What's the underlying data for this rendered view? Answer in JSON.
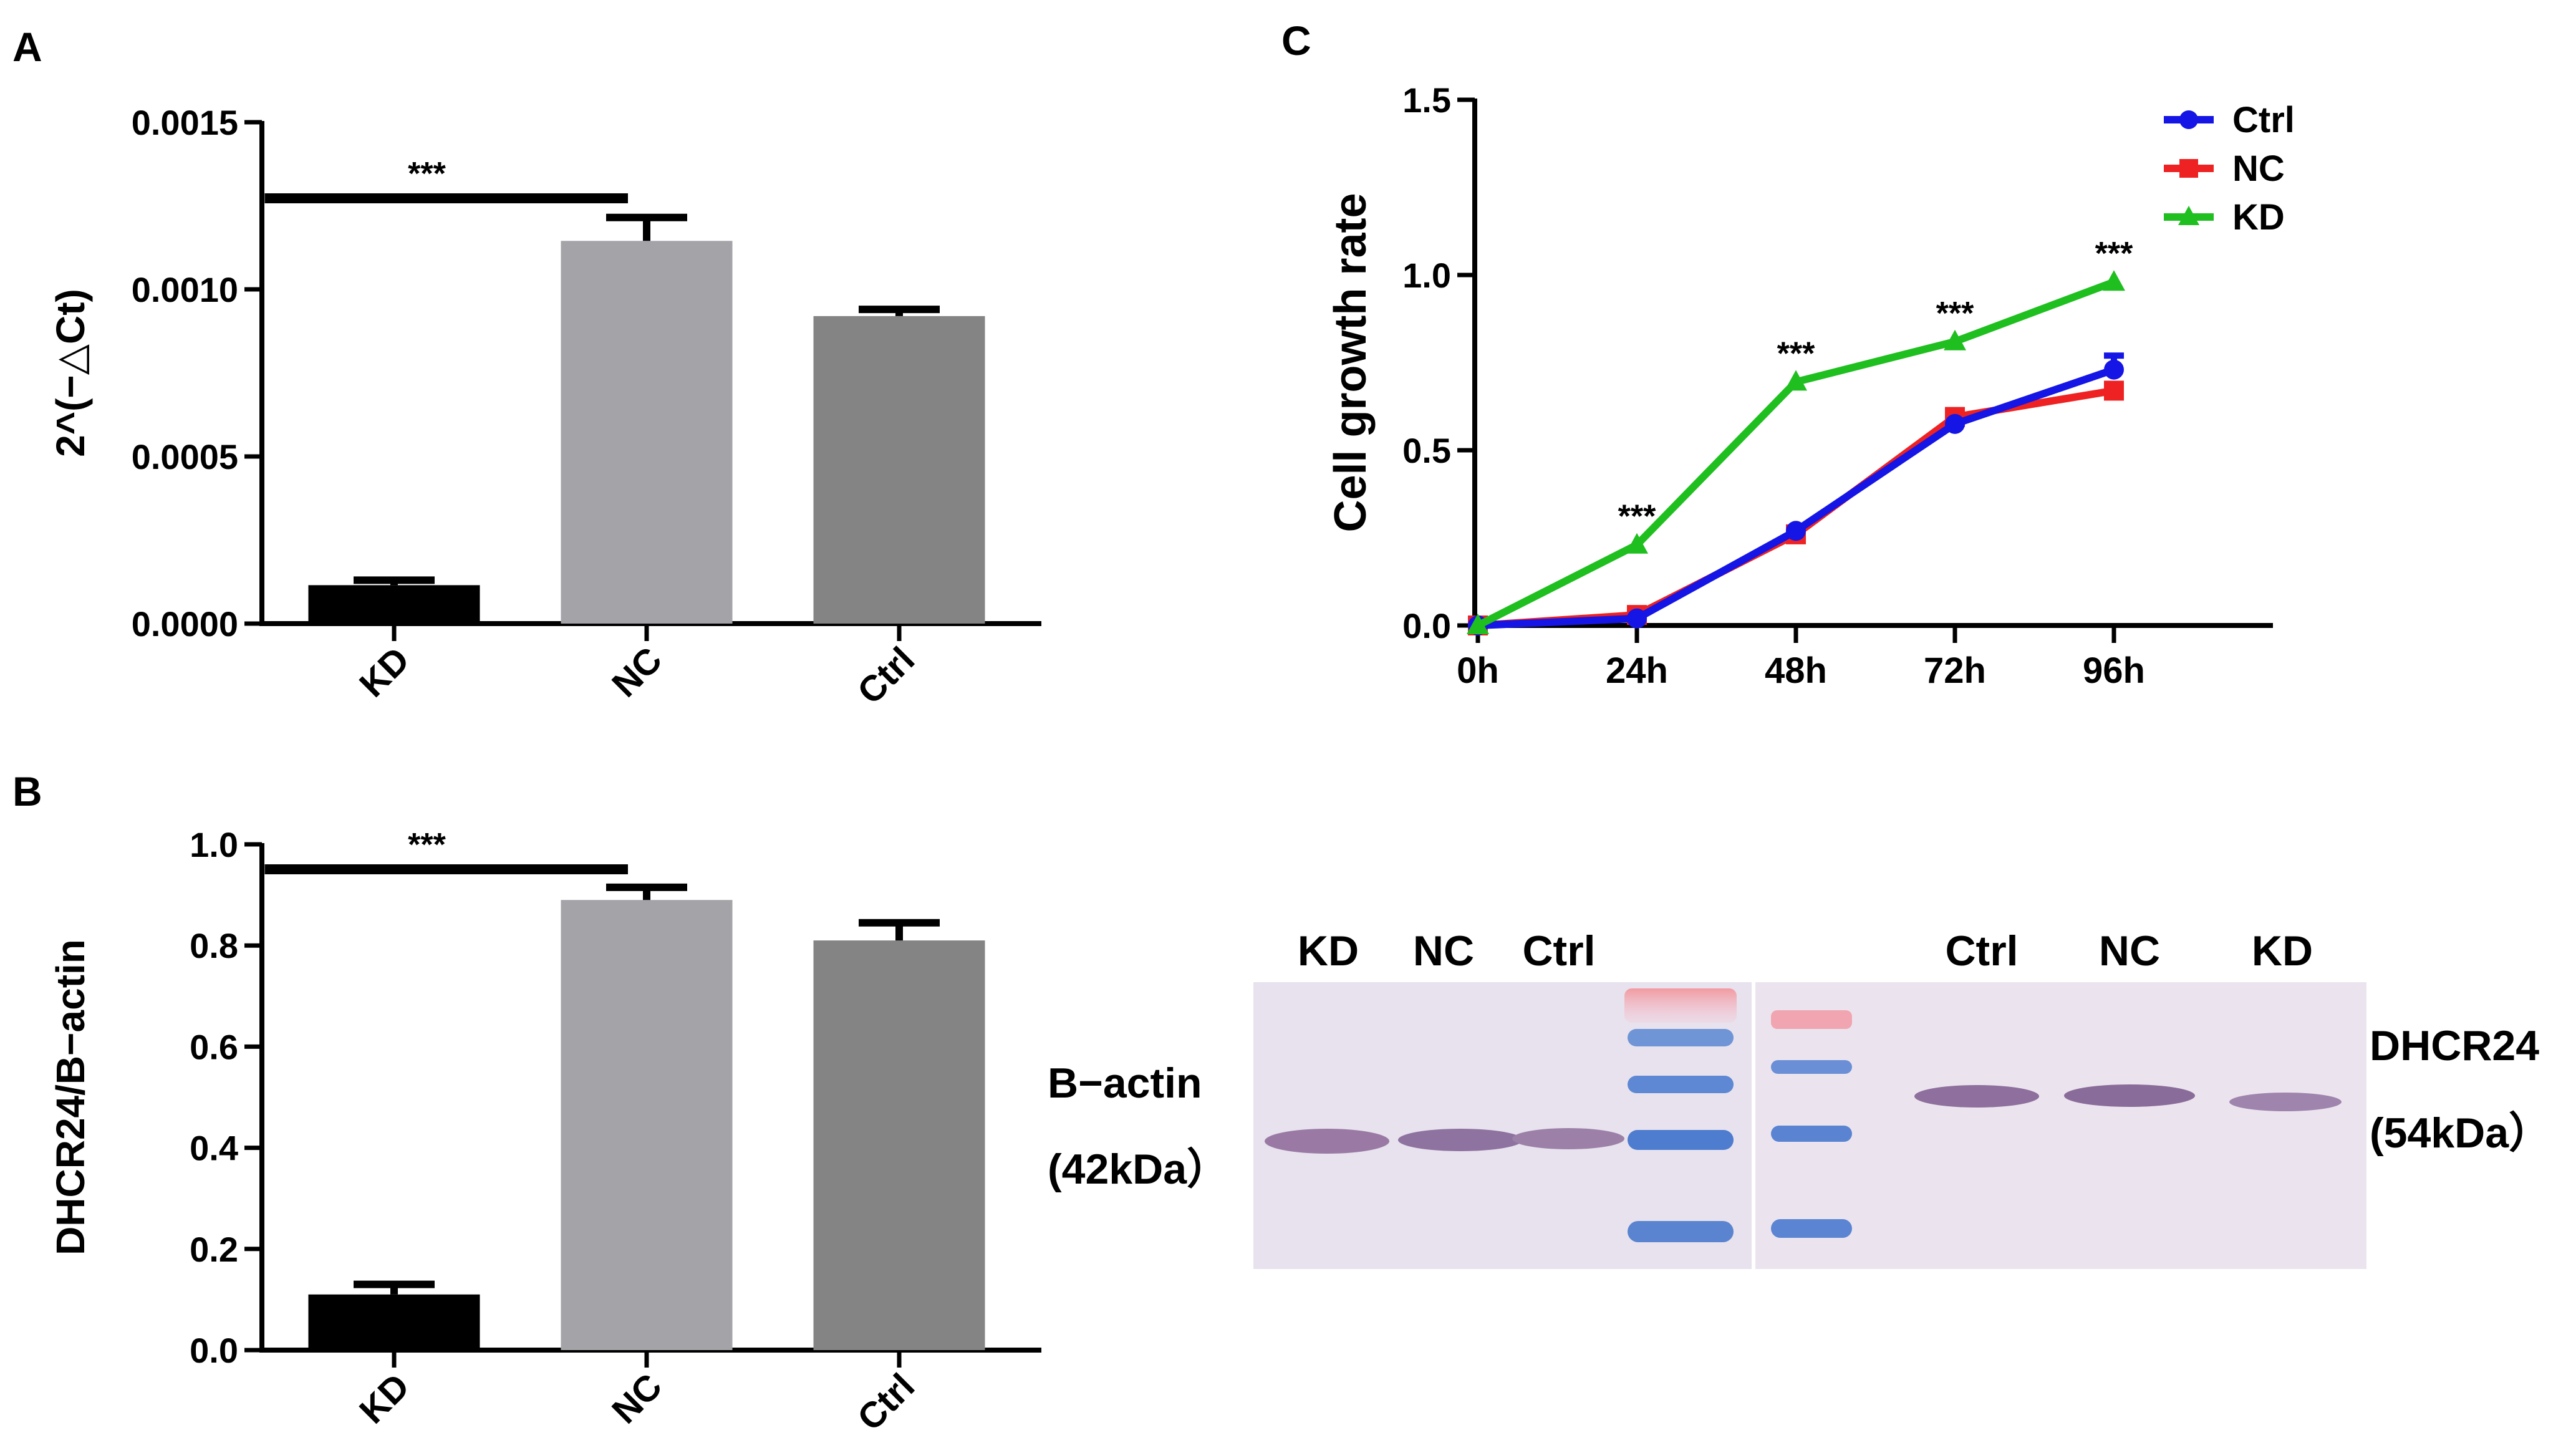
{
  "panel_labels": {
    "a": "A",
    "b": "B",
    "c": "C"
  },
  "colors": {
    "kd_bar": "#000000",
    "nc_bar": "#a3a3a8",
    "ctrl_bar": "#848484",
    "ctrl_line": "#1515e6",
    "nc_line": "#ee2222",
    "kd_line": "#1fbf1f"
  },
  "chart_data": [
    {
      "id": "A",
      "type": "bar",
      "title": "",
      "ylabel": "2^(−△Ct)",
      "xlabel": "",
      "ylim": [
        0,
        0.0015
      ],
      "yticks": [
        "0.0000",
        "0.0005",
        "0.0010",
        "0.0015"
      ],
      "categories": [
        "KD",
        "NC",
        "Ctrl"
      ],
      "values": [
        0.000115,
        0.001145,
        0.00092
      ],
      "errors": [
        1.5e-05,
        7e-05,
        2e-05
      ],
      "significance": {
        "text": "***",
        "from": "KD",
        "to": "NC"
      }
    },
    {
      "id": "B",
      "type": "bar",
      "title": "",
      "ylabel": "DHCR24/B−actin",
      "xlabel": "",
      "ylim": [
        0,
        1.0
      ],
      "yticks": [
        "0.0",
        "0.2",
        "0.4",
        "0.6",
        "0.8",
        "1.0"
      ],
      "categories": [
        "KD",
        "NC",
        "Ctrl"
      ],
      "values": [
        0.11,
        0.89,
        0.81
      ],
      "errors": [
        0.02,
        0.025,
        0.035
      ],
      "significance": {
        "text": "***",
        "from": "KD",
        "to": "NC"
      }
    },
    {
      "id": "C",
      "type": "line",
      "title": "",
      "ylabel": "Cell growth rate",
      "xlabel": "",
      "ylim": [
        0,
        1.5
      ],
      "yticks": [
        "0.0",
        "0.5",
        "1.0",
        "1.5"
      ],
      "x": [
        "0h",
        "24h",
        "48h",
        "72h",
        "96h"
      ],
      "series": [
        {
          "name": "Ctrl",
          "values": [
            0.0,
            0.02,
            0.27,
            0.575,
            0.73
          ],
          "errors": [
            0,
            0,
            0,
            0,
            0.04
          ]
        },
        {
          "name": "NC",
          "values": [
            0.0,
            0.03,
            0.26,
            0.595,
            0.67
          ],
          "errors": [
            0,
            0,
            0,
            0,
            0
          ]
        },
        {
          "name": "KD",
          "values": [
            0.0,
            0.23,
            0.695,
            0.81,
            0.98
          ],
          "errors": [
            0,
            0,
            0,
            0,
            0
          ]
        }
      ],
      "annotations": [
        {
          "x": "24h",
          "text": "***"
        },
        {
          "x": "48h",
          "text": "***"
        },
        {
          "x": "72h",
          "text": "***"
        },
        {
          "x": "96h",
          "text": "***"
        }
      ],
      "legend": "top-right"
    }
  ],
  "blot": {
    "left_lanes": [
      "KD",
      "NC",
      "Ctrl"
    ],
    "right_lanes": [
      "Ctrl",
      "NC",
      "KD"
    ],
    "left_protein": "B−actin",
    "left_weight": "(42kDa）",
    "right_protein": "DHCR24",
    "right_weight": "(54kDa）"
  }
}
